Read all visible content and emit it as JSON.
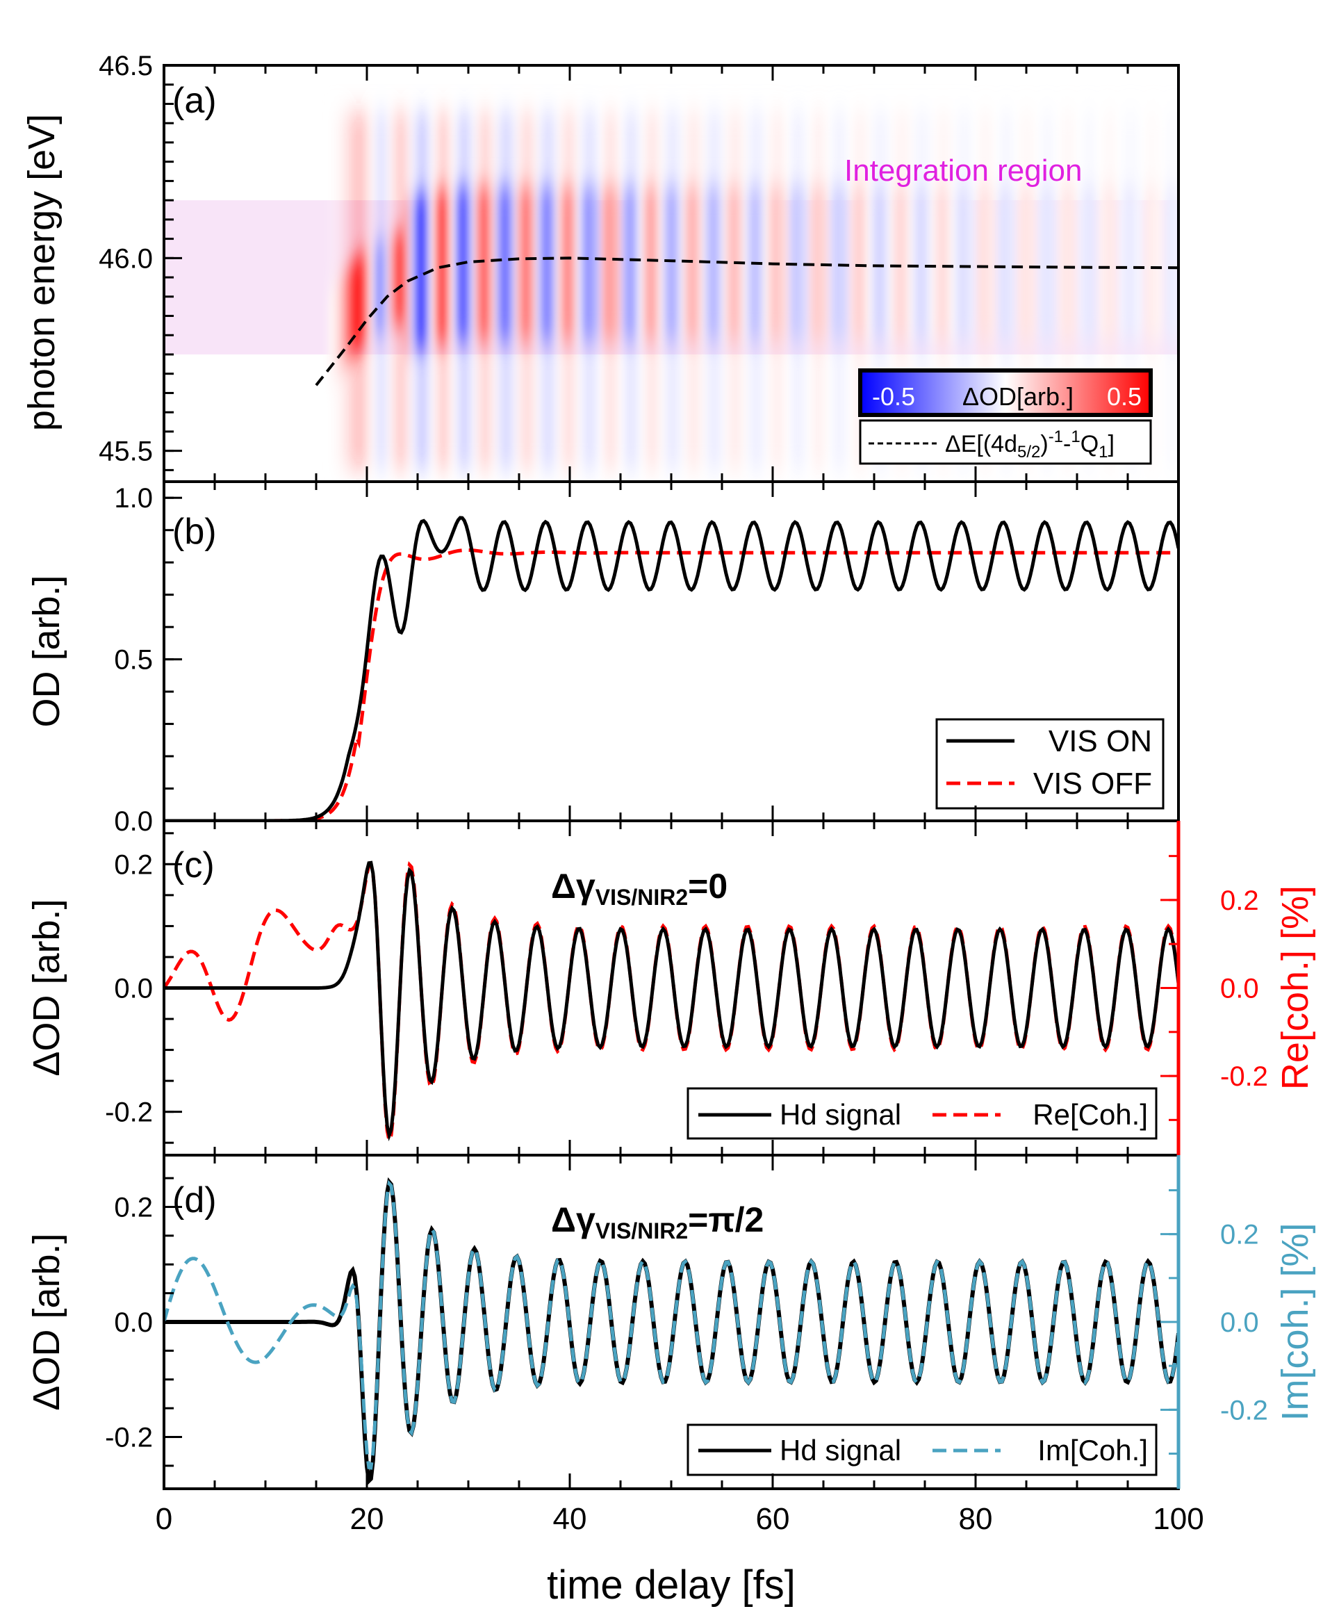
{
  "chart_data": [
    {
      "panel": "(a)",
      "type": "heatmap",
      "ylabel": "photon energy [eV]",
      "ylim": [
        45.42,
        46.5
      ],
      "yticks": [
        "45.5",
        "46.0",
        "46.5"
      ],
      "xlim": [
        0,
        100
      ],
      "region_label": "Integration region",
      "region_y": [
        45.75,
        46.15
      ],
      "colorbar": {
        "min_label": "-0.5",
        "title": "ΔOD[arb.]",
        "max_label": "0.5",
        "min_color": "#0000ff",
        "max_color": "#ff0000"
      },
      "line_legend": {
        "prefix": "ΔE[(4d",
        "sub1": "5/2",
        "sup1": ")",
        "mid": "-1",
        "dash": "-",
        "sup2": "1",
        "tail": "Q",
        "sub2": "1",
        "close": "]"
      },
      "curve_color": "#000000",
      "curve_x": [
        15,
        18,
        20,
        22,
        24,
        27,
        30,
        35,
        40,
        50,
        60,
        70,
        80,
        90,
        100
      ],
      "curve_y": [
        45.67,
        45.77,
        45.84,
        45.9,
        45.94,
        45.975,
        45.99,
        45.998,
        46.0,
        45.993,
        45.985,
        45.98,
        45.978,
        45.976,
        45.975
      ]
    },
    {
      "panel": "(b)",
      "type": "line",
      "ylabel": "OD [arb.]",
      "ylim": [
        0,
        1.05
      ],
      "yticks": [
        "0.0",
        "0.5",
        "1.0"
      ],
      "xlim": [
        0,
        100
      ],
      "series": [
        {
          "name": "VIS ON",
          "color": "#000000",
          "dash": "solid"
        },
        {
          "name": "VIS OFF",
          "color": "#ff0000",
          "dash": "dashed"
        }
      ]
    },
    {
      "panel": "(c)",
      "type": "line",
      "title": "Δγ",
      "title_sub": "VIS/NIR2",
      "title_tail": "=0",
      "ylabel": "ΔOD [arb.]",
      "ylim": [
        -0.27,
        0.27
      ],
      "yticks": [
        "-0.2",
        "0.0",
        "0.2"
      ],
      "y2label": "Re[coh.] [%]",
      "y2lim": [
        -0.38,
        0.38
      ],
      "y2ticks": [
        "-0.2",
        "0.0",
        "0.2"
      ],
      "y2color": "#ff0000",
      "xlim": [
        0,
        100
      ],
      "series": [
        {
          "name": "Hd signal",
          "color": "#000000",
          "dash": "solid"
        },
        {
          "name": "Re[Coh.]",
          "color": "#ff0000",
          "dash": "dashed"
        }
      ]
    },
    {
      "panel": "(d)",
      "type": "line",
      "title": "Δγ",
      "title_sub": "VIS/NIR2",
      "title_tail": "=π/2",
      "ylabel": "ΔOD [arb.]",
      "ylim": [
        -0.29,
        0.29
      ],
      "yticks": [
        "-0.2",
        "0.0",
        "0.2"
      ],
      "y2label": "Im[coh.] [%]",
      "y2lim": [
        -0.38,
        0.38
      ],
      "y2ticks": [
        "-0.2",
        "0.0",
        "0.2"
      ],
      "y2color": "#4aa3c1",
      "xlabel": "time delay [fs]",
      "xlim": [
        0,
        100
      ],
      "xticks": [
        "0",
        "20",
        "40",
        "60",
        "80",
        "100"
      ],
      "series": [
        {
          "name": "Hd signal",
          "color": "#000000",
          "dash": "solid"
        },
        {
          "name": "Im[Coh.]",
          "color": "#4aa3c1",
          "dash": "dashed"
        }
      ]
    }
  ]
}
